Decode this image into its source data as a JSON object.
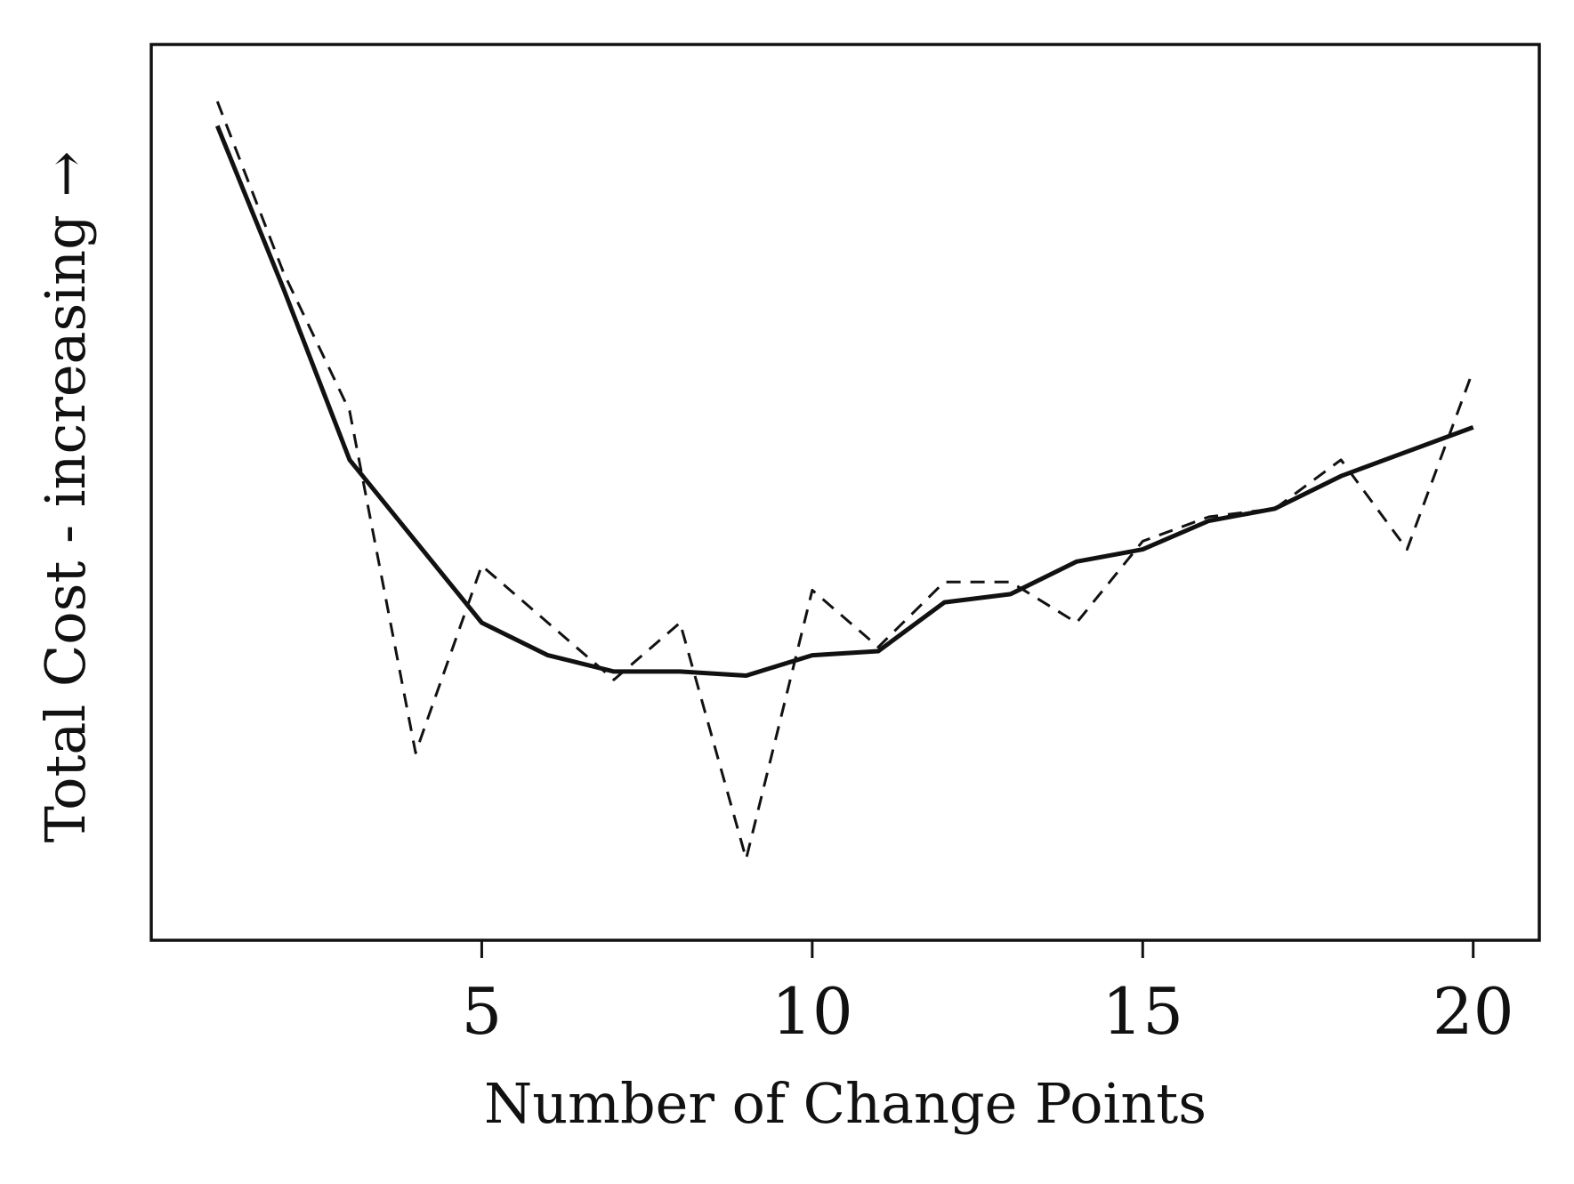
{
  "chart_data": {
    "type": "line",
    "title": "",
    "xlabel": "Number of Change Points",
    "ylabel": "Total Cost - increasing →",
    "xlim": [
      0,
      21
    ],
    "ylim": [
      -0.05,
      1.05
    ],
    "xticks": [
      5,
      10,
      15,
      20
    ],
    "yticks": [],
    "grid": false,
    "legend": "none",
    "x": [
      1,
      2,
      3,
      4,
      5,
      6,
      7,
      8,
      9,
      10,
      11,
      12,
      13,
      14,
      15,
      16,
      17,
      18,
      19,
      20
    ],
    "series": [
      {
        "style": "solid",
        "color": "#111111",
        "values": [
          0.95,
          0.75,
          0.54,
          0.44,
          0.34,
          0.3,
          0.28,
          0.28,
          0.275,
          0.3,
          0.305,
          0.365,
          0.375,
          0.415,
          0.43,
          0.465,
          0.48,
          0.52,
          0.55,
          0.58
        ]
      },
      {
        "style": "dashed",
        "color": "#111111",
        "values": [
          0.98,
          0.77,
          0.6,
          0.18,
          0.41,
          0.34,
          0.27,
          0.34,
          0.05,
          0.38,
          0.31,
          0.39,
          0.39,
          0.34,
          0.44,
          0.47,
          0.48,
          0.54,
          0.43,
          0.65
        ]
      }
    ]
  }
}
